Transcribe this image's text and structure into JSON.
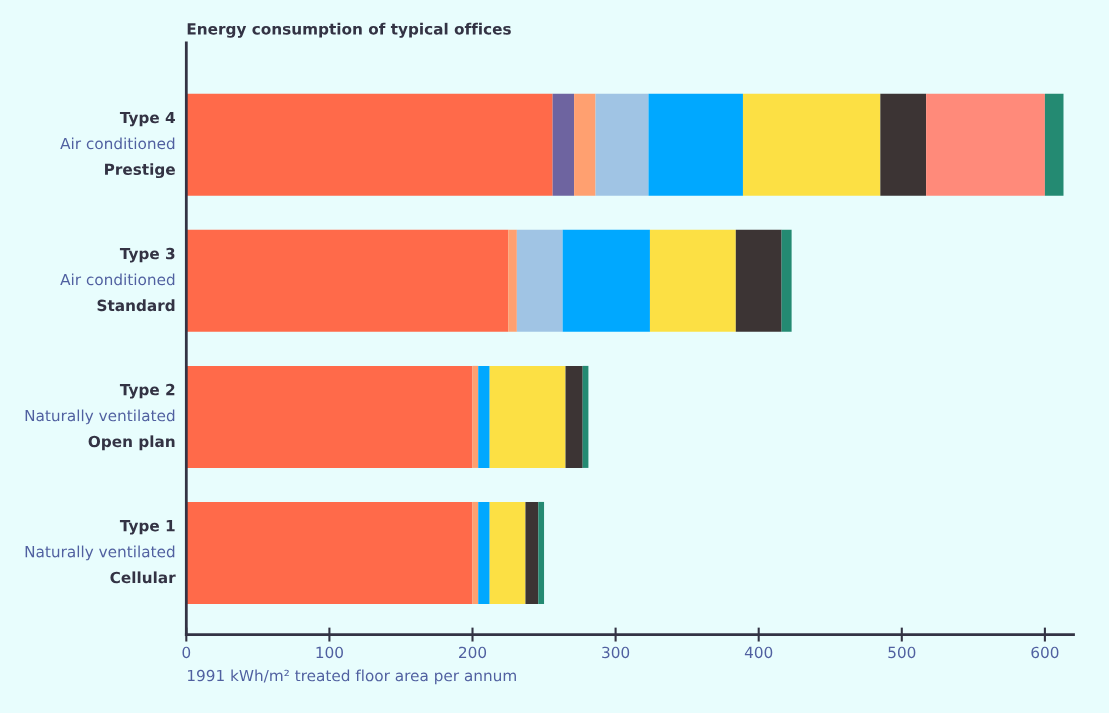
{
  "chart_data": {
    "type": "bar",
    "orientation": "horizontal",
    "stacked": true,
    "title": "Energy consumption of typical offices",
    "xlabel": "1991 kWh/m² treated floor area per annum",
    "categories": [
      "Type 4\nAir conditioned\nPrestige",
      "Type 3\nAir conditioned\nStandard",
      "Type 2\nNaturally ventilated\nOpen plan",
      "Type 1\nNaturally ventilated\nCellular"
    ],
    "series": [
      {
        "color": "#ff6a4a",
        "values": [
          256,
          225,
          200,
          200
        ]
      },
      {
        "color": "#6e64a0",
        "values": [
          15,
          0,
          0,
          0
        ]
      },
      {
        "color": "#ffa070",
        "values": [
          15,
          6,
          4,
          4
        ]
      },
      {
        "color": "#a0c4e4",
        "values": [
          37,
          32,
          0,
          0
        ]
      },
      {
        "color": "#00a8ff",
        "values": [
          66,
          61,
          8,
          8
        ]
      },
      {
        "color": "#fce044",
        "values": [
          96,
          60,
          53,
          25
        ]
      },
      {
        "color": "#3c3434",
        "values": [
          32,
          32,
          12,
          9
        ]
      },
      {
        "color": "#ff8a7a",
        "values": [
          83,
          0,
          0,
          0
        ]
      },
      {
        "color": "#248a72",
        "values": [
          13,
          7,
          4,
          4
        ]
      }
    ],
    "xlim": [
      0,
      620
    ],
    "xticks": [
      0,
      100,
      200,
      300,
      400,
      500,
      600
    ],
    "grid": false,
    "legend": false
  }
}
